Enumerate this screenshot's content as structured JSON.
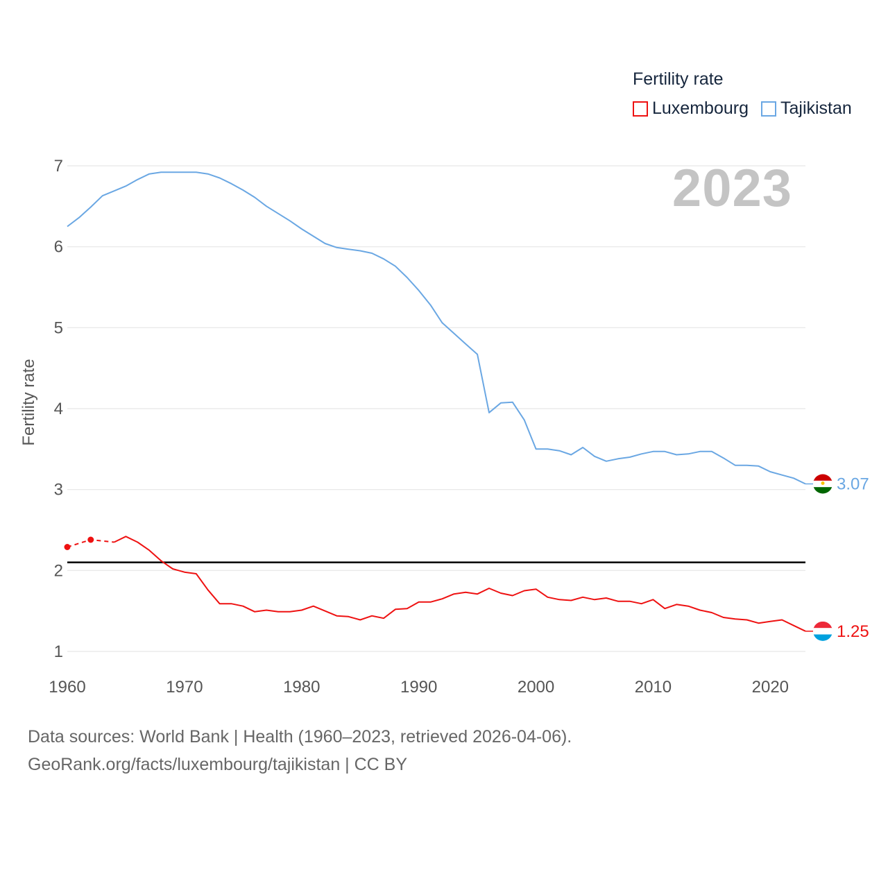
{
  "legend": {
    "title": "Fertility rate",
    "items": [
      {
        "label": "Luxembourg",
        "color": "#ee1111"
      },
      {
        "label": "Tajikistan",
        "color": "#6aa7e3"
      }
    ]
  },
  "year_badge": "2023",
  "footer": {
    "line1": "Data sources: World Bank | Health (1960–2023, retrieved 2026-04-06).",
    "line2": "GeoRank.org/facts/luxembourg/tajikistan | CC BY"
  },
  "chart_data": {
    "type": "line",
    "title": "Fertility rate",
    "ylabel": "Fertility rate",
    "xlabel": "",
    "xlim": [
      1960,
      2023
    ],
    "ylim": [
      1,
      7
    ],
    "x_ticks": [
      1960,
      1970,
      1980,
      1990,
      2000,
      2010,
      2020
    ],
    "y_ticks": [
      1,
      2,
      3,
      4,
      5,
      6,
      7
    ],
    "grid": true,
    "reference_line": {
      "y": 2.1,
      "color": "#000000"
    },
    "series": [
      {
        "name": "Tajikistan",
        "color": "#6aa7e3",
        "end_label": "3.07",
        "x": [
          1960,
          1961,
          1962,
          1963,
          1964,
          1965,
          1966,
          1967,
          1968,
          1969,
          1970,
          1971,
          1972,
          1973,
          1974,
          1975,
          1976,
          1977,
          1978,
          1979,
          1980,
          1981,
          1982,
          1983,
          1984,
          1985,
          1986,
          1987,
          1988,
          1989,
          1990,
          1991,
          1992,
          1993,
          1994,
          1995,
          1996,
          1997,
          1998,
          1999,
          2000,
          2001,
          2002,
          2003,
          2004,
          2005,
          2006,
          2007,
          2008,
          2009,
          2010,
          2011,
          2012,
          2013,
          2014,
          2015,
          2016,
          2017,
          2018,
          2019,
          2020,
          2021,
          2022,
          2023
        ],
        "values": [
          6.25,
          6.36,
          6.49,
          6.63,
          6.69,
          6.75,
          6.83,
          6.9,
          6.92,
          6.92,
          6.92,
          6.92,
          6.9,
          6.85,
          6.78,
          6.7,
          6.61,
          6.5,
          6.41,
          6.32,
          6.22,
          6.13,
          6.04,
          5.99,
          5.97,
          5.95,
          5.92,
          5.85,
          5.76,
          5.62,
          5.46,
          5.28,
          5.06,
          4.93,
          4.8,
          4.67,
          3.95,
          4.07,
          4.08,
          3.86,
          3.5,
          3.5,
          3.48,
          3.43,
          3.52,
          3.41,
          3.35,
          3.38,
          3.4,
          3.44,
          3.47,
          3.47,
          3.43,
          3.44,
          3.47,
          3.47,
          3.39,
          3.3,
          3.3,
          3.29,
          3.22,
          3.18,
          3.14,
          3.07
        ]
      },
      {
        "name": "Luxembourg",
        "color": "#ee1111",
        "end_label": "1.25",
        "estimated_points": [
          {
            "x": 1960,
            "y": 2.29
          },
          {
            "x": 1962,
            "y": 2.38
          }
        ],
        "estimated_connector": {
          "x": [
            1960,
            1962,
            1964
          ],
          "values": [
            2.29,
            2.38,
            2.35
          ]
        },
        "x": [
          1964,
          1965,
          1966,
          1967,
          1968,
          1969,
          1970,
          1971,
          1972,
          1973,
          1974,
          1975,
          1976,
          1977,
          1978,
          1979,
          1980,
          1981,
          1982,
          1983,
          1984,
          1985,
          1986,
          1987,
          1988,
          1989,
          1990,
          1991,
          1992,
          1993,
          1994,
          1995,
          1996,
          1997,
          1998,
          1999,
          2000,
          2001,
          2002,
          2003,
          2004,
          2005,
          2006,
          2007,
          2008,
          2009,
          2010,
          2011,
          2012,
          2013,
          2014,
          2015,
          2016,
          2017,
          2018,
          2019,
          2020,
          2021,
          2022,
          2023
        ],
        "values": [
          2.35,
          2.42,
          2.35,
          2.25,
          2.12,
          2.02,
          1.98,
          1.96,
          1.76,
          1.59,
          1.59,
          1.56,
          1.49,
          1.51,
          1.49,
          1.49,
          1.51,
          1.56,
          1.5,
          1.44,
          1.43,
          1.39,
          1.44,
          1.41,
          1.52,
          1.53,
          1.61,
          1.61,
          1.65,
          1.71,
          1.73,
          1.71,
          1.78,
          1.72,
          1.69,
          1.75,
          1.77,
          1.67,
          1.64,
          1.63,
          1.67,
          1.64,
          1.66,
          1.62,
          1.62,
          1.59,
          1.64,
          1.53,
          1.58,
          1.56,
          1.51,
          1.48,
          1.42,
          1.4,
          1.39,
          1.35,
          1.37,
          1.39,
          1.32,
          1.25
        ]
      }
    ]
  }
}
